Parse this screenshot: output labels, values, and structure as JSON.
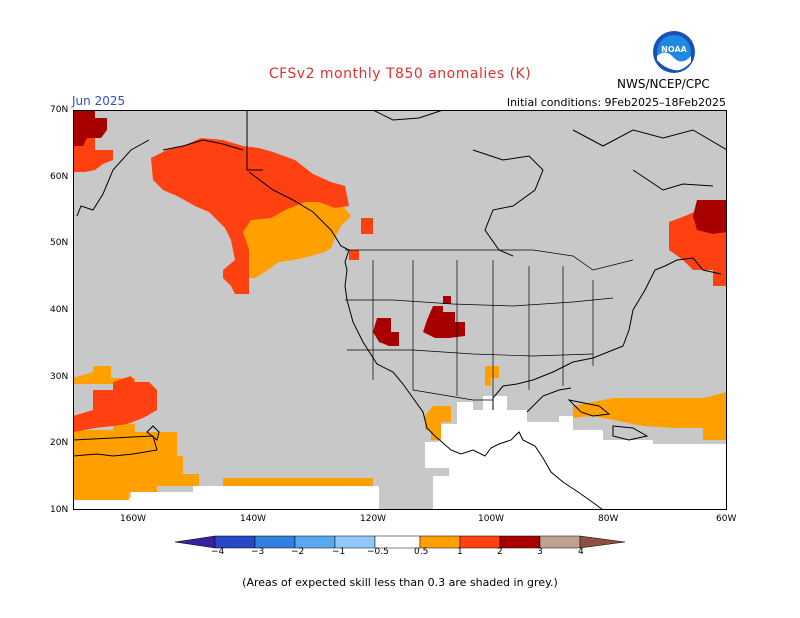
{
  "title": "CFSv2 monthly T850 anomalies (K)",
  "month": "Jun 2025",
  "initial_conditions": "Initial conditions:  9Feb2025–18Feb2025",
  "agency": "NWS/NCEP/CPC",
  "logo_text": "NOAA",
  "footnote": "(Areas of expected skill less than 0.3 are shaded in grey.)",
  "lat_labels": [
    "70N",
    "60N",
    "50N",
    "40N",
    "30N",
    "20N",
    "10N"
  ],
  "lon_labels": [
    "160W",
    "140W",
    "120W",
    "100W",
    "80W",
    "60W"
  ],
  "colorbar": {
    "labels": [
      "−4",
      "−3",
      "−2",
      "−1",
      "−0.5",
      "0.5",
      "1",
      "2",
      "3",
      "4"
    ],
    "colors": [
      "#3a20a0",
      "#2848c8",
      "#3080e0",
      "#58a8f0",
      "#90c8f8",
      "#ffffff",
      "#ffa000",
      "#ff4010",
      "#a80000",
      "#c0a090",
      "#905040"
    ]
  },
  "legend_colors": {
    "grey_low_skill": "#c8c8c8",
    "anomaly_0_5_to_1": "#ffa000",
    "anomaly_1_to_2": "#ff4010",
    "anomaly_2_to_3": "#a80000",
    "land_outline": "#000000"
  }
}
